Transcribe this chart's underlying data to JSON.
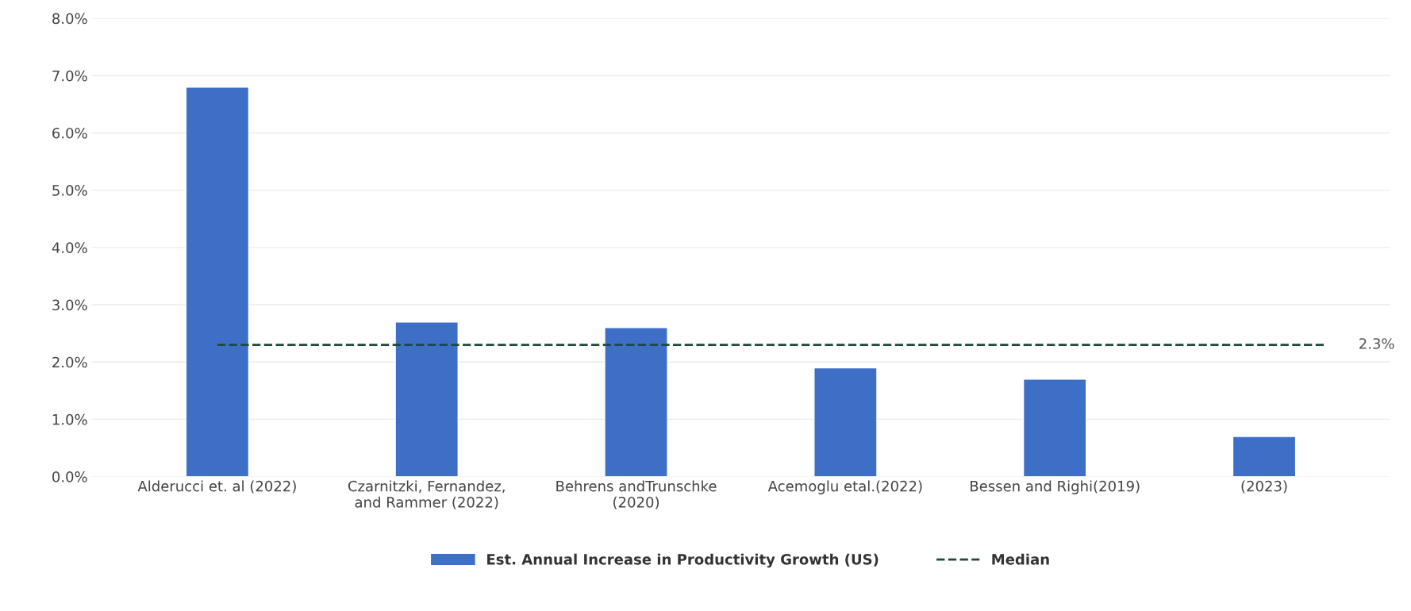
{
  "chart_data": {
    "type": "bar",
    "categories": [
      "Alderucci et. al (2022)",
      "Czarnitzki, Fernandez,\nand Rammer (2022)",
      "Behrens andTrunschke\n(2020)",
      "Acemoglu etal.(2022)",
      "Bessen and Righi(2019)",
      "(2023)"
    ],
    "series": [
      {
        "name": "Est. Annual Increase in Productivity Growth (US)",
        "color": "#3d6fc6",
        "values": [
          6.8,
          2.7,
          2.6,
          1.9,
          1.7,
          0.7
        ]
      }
    ],
    "ref_lines": [
      {
        "axis": "y",
        "value": 2.3,
        "label": "Median",
        "color": "#1f4a38",
        "line_style": "dashed"
      }
    ],
    "ylim": [
      0,
      8
    ],
    "yticks": [
      {
        "value": 0,
        "label": "0.0%"
      },
      {
        "value": 1,
        "label": "1.0%"
      },
      {
        "value": 2,
        "label": "2.0%"
      },
      {
        "value": 3,
        "label": "3.0%"
      },
      {
        "value": 4,
        "label": "4.0%"
      },
      {
        "value": 5,
        "label": "5.0%"
      },
      {
        "value": 6,
        "label": "6.0%"
      },
      {
        "value": 7,
        "label": "7.0%"
      },
      {
        "value": 8,
        "label": "8.0%"
      }
    ],
    "annotations": [
      "2.3%"
    ],
    "grid": "y",
    "legend": "bottom"
  }
}
